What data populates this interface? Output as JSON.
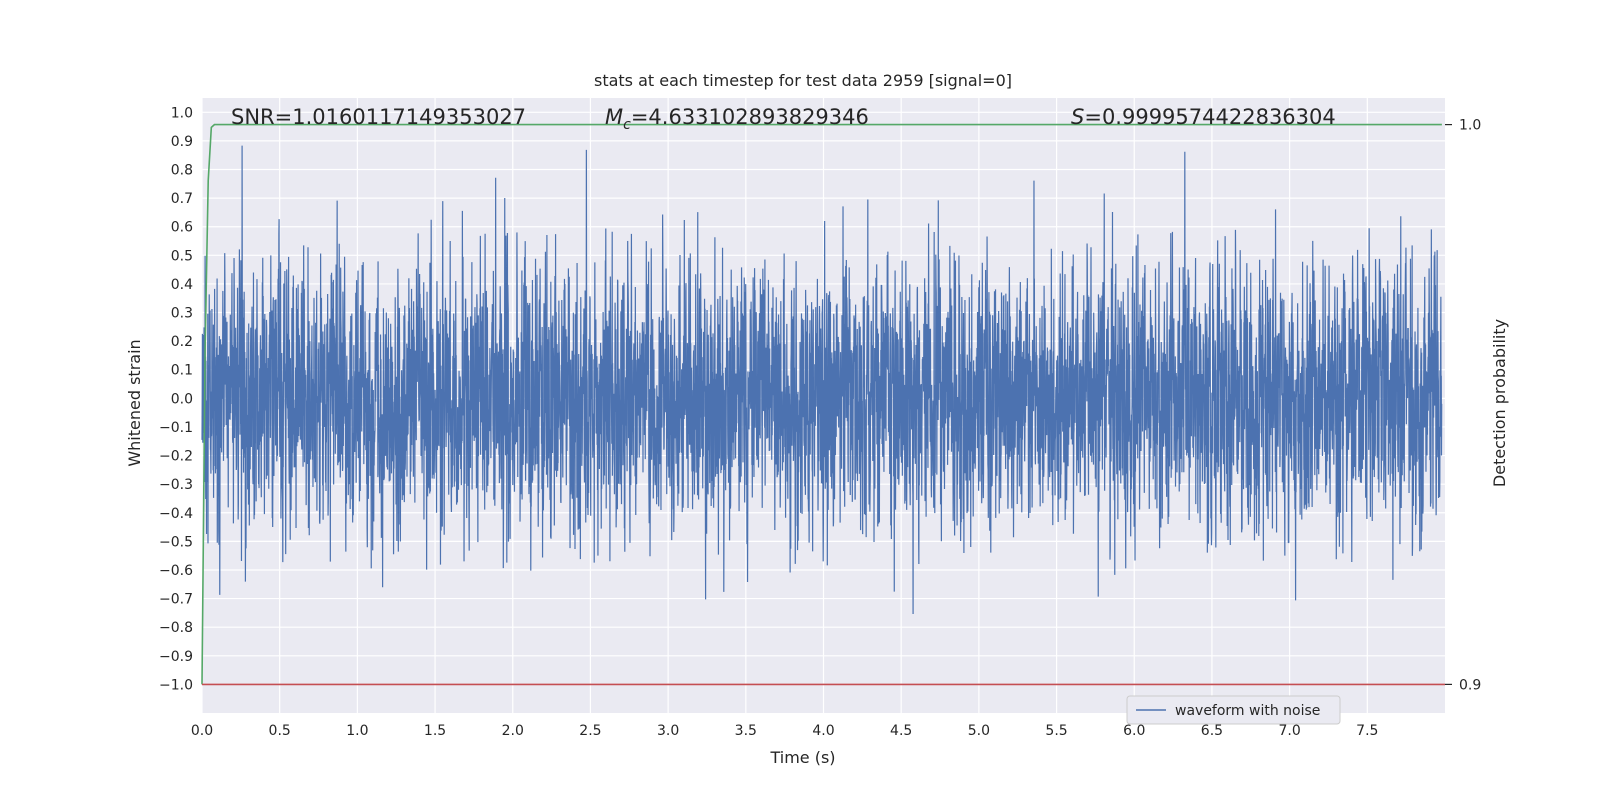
{
  "chart_data": {
    "type": "line",
    "title": "stats at each timestep for test data 2959 [signal=0]",
    "xlabel": "Time (s)",
    "ylabel": "Whitened strain",
    "y2label": "Detection probability",
    "xlim": [
      0,
      8
    ],
    "ylim": [
      -1.1,
      1.05
    ],
    "y2lim": [
      0.9,
      1.0
    ],
    "xticks": [
      "0.0",
      "0.5",
      "1.0",
      "1.5",
      "2.0",
      "2.5",
      "3.0",
      "3.5",
      "4.0",
      "4.5",
      "5.0",
      "5.5",
      "6.0",
      "6.5",
      "7.0",
      "7.5"
    ],
    "yticks": [
      "1.0",
      "0.9",
      "0.8",
      "0.7",
      "0.6",
      "0.5",
      "0.4",
      "0.3",
      "0.2",
      "0.1",
      "0.0",
      "−0.1",
      "−0.2",
      "−0.3",
      "−0.4",
      "−0.5",
      "−0.6",
      "−0.7",
      "−0.8",
      "−0.9",
      "−1.0"
    ],
    "y2ticks": [
      "1.0",
      "0.9"
    ],
    "grid": true,
    "legend_position": "lower-right",
    "annotations": {
      "snr": "SNR=1.0160117149353027",
      "mc_symbol": "M",
      "mc_sub": "c",
      "mc_value": "=4.633102893829346",
      "s_symbol": "S",
      "s_value": "=0.9999574422836304"
    },
    "series": [
      {
        "name": "waveform with noise",
        "color": "#4c72b0",
        "description": "whitened strain noise, approximately within [-1, 1] over t = 0..8 s",
        "amplitude_range": [
          -1.0,
          0.96
        ]
      },
      {
        "color": "#55a868",
        "axis": "right",
        "x": [
          0,
          0.02,
          0.04,
          0.06,
          0.08,
          7.98
        ],
        "y": [
          0.9,
          0.96,
          0.99,
          0.9995,
          1.0,
          1.0
        ]
      },
      {
        "color": "#c44e52",
        "axis": "right",
        "x": [
          0,
          8
        ],
        "y": [
          0.9,
          0.9
        ]
      }
    ],
    "colors": {
      "axes_bg": "#eaeaf2",
      "grid": "#ffffff",
      "text": "#262626"
    }
  }
}
